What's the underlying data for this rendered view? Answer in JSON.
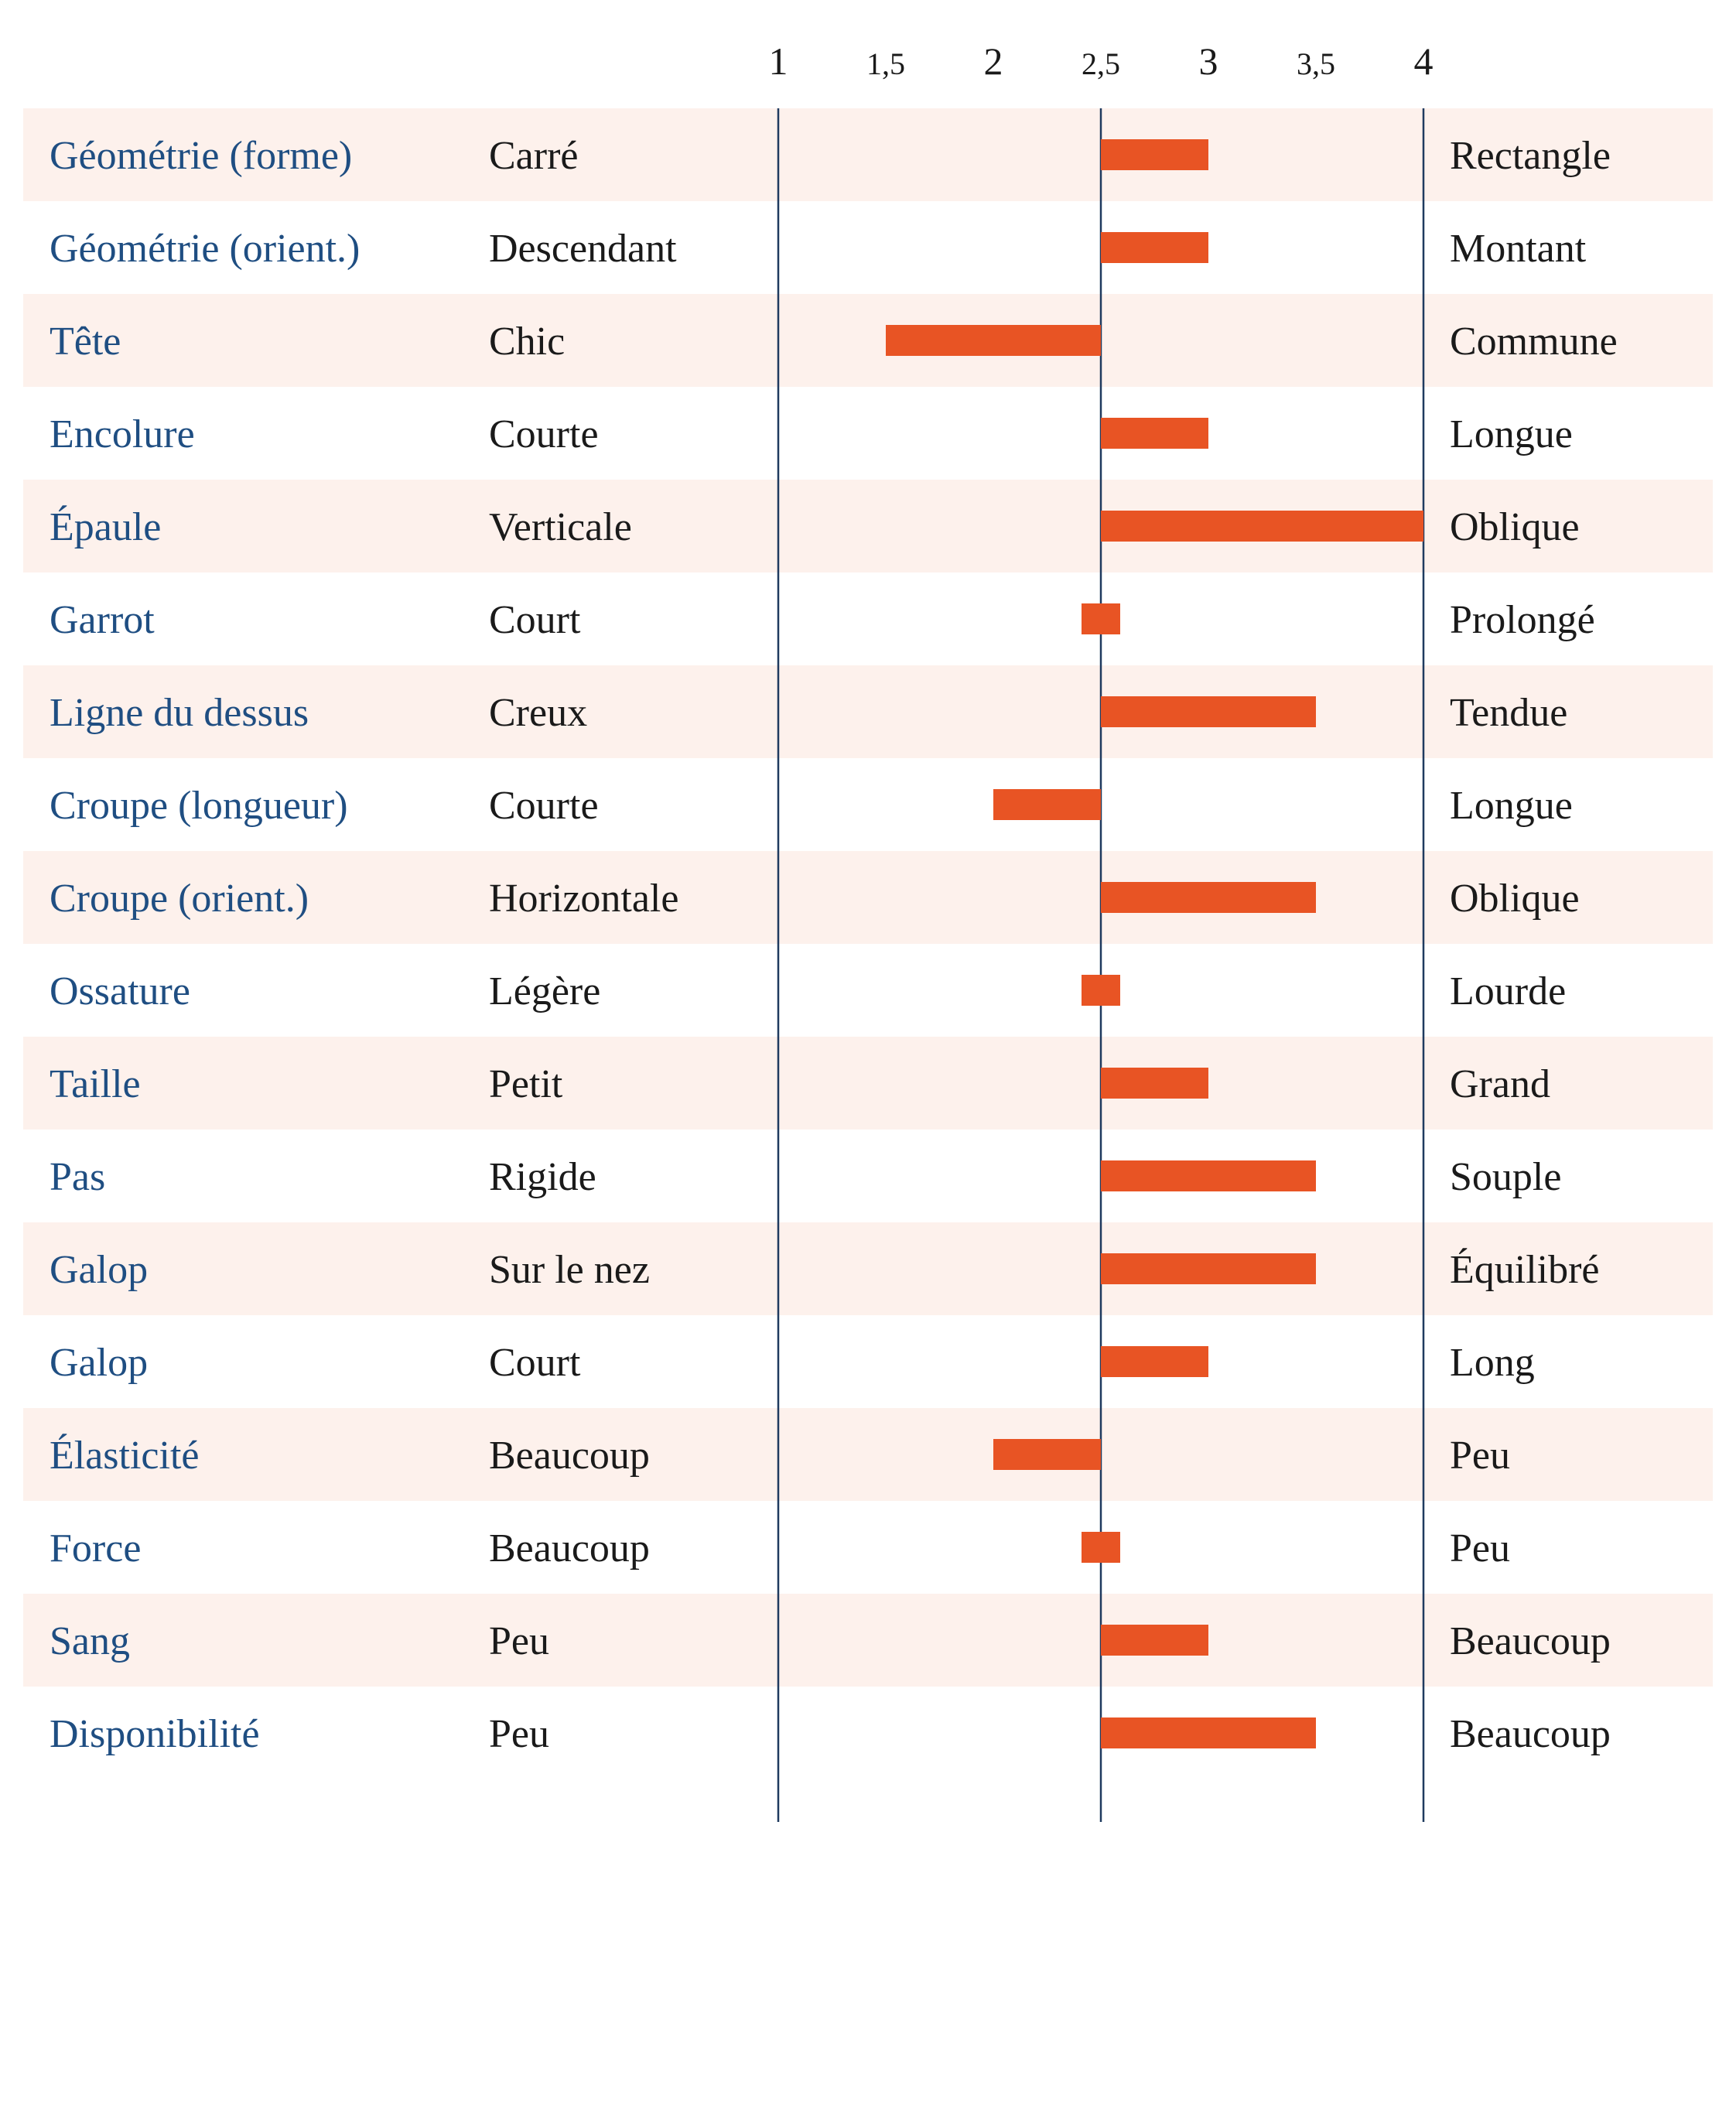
{
  "colors": {
    "bar": "#e85424",
    "row_shade": "#fdf1ec",
    "axis_line": "#1f3a5f",
    "trait_text": "#1f4e82"
  },
  "chart_data": {
    "type": "bar",
    "orientation": "horizontal",
    "baseline": 2.5,
    "xlim": [
      1,
      4
    ],
    "ticks": [
      {
        "value": 1,
        "label": "1"
      },
      {
        "value": 1.5,
        "label": "1,5"
      },
      {
        "value": 2,
        "label": "2"
      },
      {
        "value": 2.5,
        "label": "2,5"
      },
      {
        "value": 3,
        "label": "3"
      },
      {
        "value": 3.5,
        "label": "3,5"
      },
      {
        "value": 4,
        "label": "4"
      }
    ],
    "rows": [
      {
        "trait": "Géométrie (forme)",
        "low": "Carré",
        "high": "Rectangle",
        "value": 3
      },
      {
        "trait": "Géométrie (orient.)",
        "low": "Descendant",
        "high": "Montant",
        "value": 3
      },
      {
        "trait": "Tête",
        "low": "Chic",
        "high": "Commune",
        "value": 1.5
      },
      {
        "trait": "Encolure",
        "low": "Courte",
        "high": "Longue",
        "value": 3
      },
      {
        "trait": "Épaule",
        "low": "Verticale",
        "high": "Oblique",
        "value": 4
      },
      {
        "trait": "Garrot",
        "low": "Court",
        "high": "Prolongé",
        "value": 2.5
      },
      {
        "trait": "Ligne du dessus",
        "low": "Creux",
        "high": "Tendue",
        "value": 3.5
      },
      {
        "trait": "Croupe (longueur)",
        "low": "Courte",
        "high": "Longue",
        "value": 2
      },
      {
        "trait": "Croupe (orient.)",
        "low": "Horizontale",
        "high": "Oblique",
        "value": 3.5
      },
      {
        "trait": "Ossature",
        "low": "Légère",
        "high": "Lourde",
        "value": 2.5
      },
      {
        "trait": "Taille",
        "low": "Petit",
        "high": "Grand",
        "value": 3
      },
      {
        "trait": "Pas",
        "low": "Rigide",
        "high": "Souple",
        "value": 3.5
      },
      {
        "trait": "Galop",
        "low": "Sur le nez",
        "high": "Équilibré",
        "value": 3.5
      },
      {
        "trait": "Galop",
        "low": "Court",
        "high": "Long",
        "value": 3
      },
      {
        "trait": "Élasticité",
        "low": "Beaucoup",
        "high": "Peu",
        "value": 2
      },
      {
        "trait": "Force",
        "low": "Beaucoup",
        "high": "Peu",
        "value": 2.5
      },
      {
        "trait": "Sang",
        "low": "Peu",
        "high": "Beaucoup",
        "value": 3
      },
      {
        "trait": "Disponibilité",
        "low": "Peu",
        "high": "Beaucoup",
        "value": 3.5
      }
    ]
  }
}
